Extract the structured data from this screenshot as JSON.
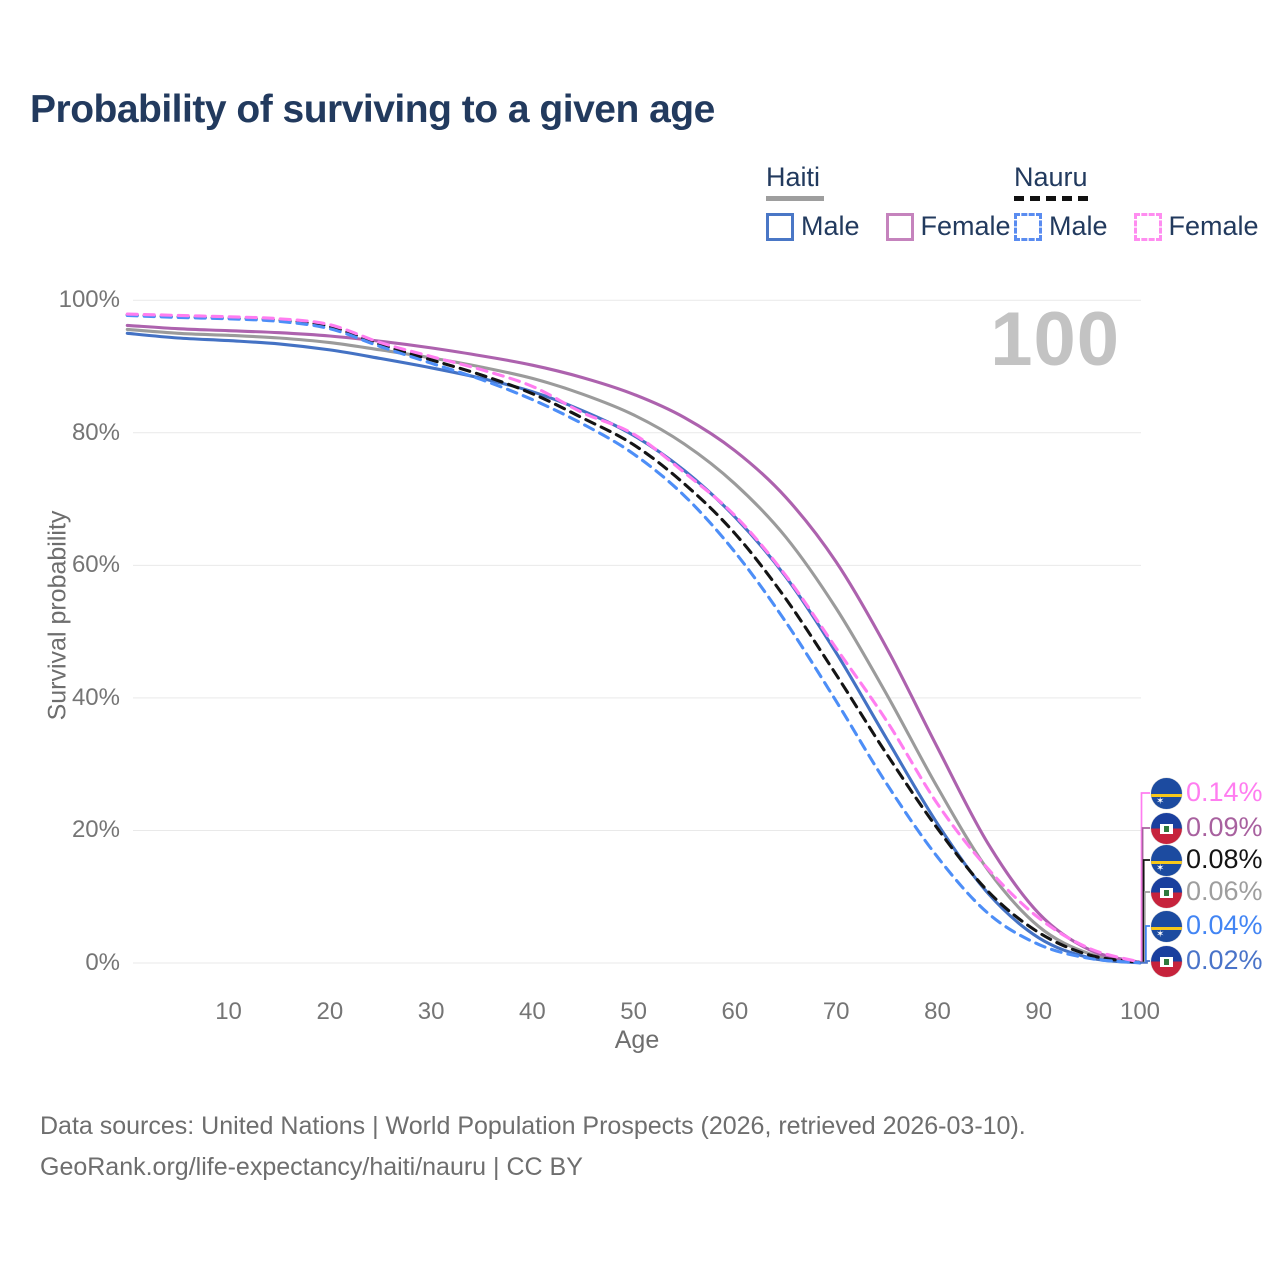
{
  "title": "Probability of surviving to a given age",
  "watermark_age": "100",
  "legend": {
    "groups": [
      {
        "label": "Haiti",
        "line_style": "solid",
        "underline_color": "#9e9e9e",
        "items": [
          {
            "label": "Male",
            "color": "#4a77c6"
          },
          {
            "label": "Female",
            "color": "#c583bd"
          }
        ]
      },
      {
        "label": "Nauru",
        "line_style": "dashed",
        "underline_color": "#111111",
        "items": [
          {
            "label": "Male",
            "color": "#5a8cf0"
          },
          {
            "label": "Female",
            "color": "#ff8df0"
          }
        ]
      }
    ]
  },
  "chart_data": {
    "type": "line",
    "title": "Probability of surviving to a given age",
    "xlabel": "Age",
    "ylabel": "Survival probability",
    "xlim": [
      0,
      100
    ],
    "ylim": [
      0,
      100
    ],
    "grid": "horizontal",
    "x_ticks": [
      "10",
      "20",
      "30",
      "40",
      "50",
      "60",
      "70",
      "80",
      "90",
      "100"
    ],
    "x_tick_values": [
      10,
      20,
      30,
      40,
      50,
      60,
      70,
      80,
      90,
      100
    ],
    "y_ticks": [
      "0%",
      "20%",
      "40%",
      "60%",
      "80%",
      "100%"
    ],
    "y_tick_values": [
      0,
      20,
      40,
      60,
      80,
      100
    ],
    "x": [
      0,
      5,
      10,
      15,
      20,
      25,
      30,
      35,
      40,
      45,
      50,
      55,
      60,
      65,
      70,
      75,
      80,
      85,
      90,
      95,
      100
    ],
    "series": [
      {
        "name": "Haiti",
        "country": "Haiti",
        "sex": "both",
        "color": "#9b9b9b",
        "dashed": false,
        "values": [
          95.6,
          95.0,
          94.7,
          94.3,
          93.6,
          92.5,
          91.3,
          89.9,
          88.2,
          85.8,
          82.7,
          78.3,
          72.3,
          64.3,
          53.5,
          40.5,
          26.5,
          14.0,
          5.5,
          1.4,
          0.06
        ]
      },
      {
        "name": "Haiti Female",
        "country": "Haiti",
        "sex": "female",
        "color": "#ad62ae",
        "dashed": false,
        "values": [
          96.2,
          95.7,
          95.4,
          95.1,
          94.6,
          93.8,
          92.8,
          91.6,
          90.2,
          88.3,
          85.8,
          82.3,
          77.3,
          70.3,
          60.5,
          47.5,
          32.5,
          18.0,
          7.5,
          2.0,
          0.09
        ]
      },
      {
        "name": "Haiti Male",
        "country": "Haiti",
        "sex": "male",
        "color": "#4472c4",
        "dashed": false,
        "values": [
          95.0,
          94.3,
          93.9,
          93.4,
          92.5,
          91.2,
          89.8,
          88.2,
          86.2,
          83.3,
          79.6,
          74.3,
          67.3,
          58.3,
          46.8,
          33.8,
          21.0,
          10.5,
          3.8,
          0.8,
          0.02
        ]
      },
      {
        "name": "Nauru",
        "country": "Nauru",
        "sex": "both",
        "color": "#141414",
        "dashed": true,
        "values": [
          97.8,
          97.5,
          97.3,
          97.0,
          96.0,
          93.3,
          91.0,
          88.7,
          85.9,
          82.2,
          78.2,
          72.3,
          64.8,
          55.0,
          43.5,
          31.5,
          20.3,
          10.8,
          4.6,
          1.2,
          0.08
        ]
      },
      {
        "name": "Nauru Male",
        "country": "Nauru",
        "sex": "male",
        "color": "#4d8ef7",
        "dashed": true,
        "values": [
          97.7,
          97.4,
          97.2,
          96.8,
          95.7,
          93.0,
          90.5,
          88.0,
          85.0,
          81.3,
          76.8,
          70.5,
          62.0,
          51.5,
          39.5,
          27.0,
          16.0,
          7.5,
          2.8,
          0.7,
          0.04
        ]
      },
      {
        "name": "Nauru Female",
        "country": "Nauru",
        "sex": "female",
        "color": "#ff7df0",
        "dashed": true,
        "values": [
          97.9,
          97.7,
          97.5,
          97.2,
          96.3,
          93.6,
          91.5,
          89.5,
          87.0,
          83.0,
          79.8,
          74.0,
          67.5,
          58.5,
          47.5,
          36.5,
          24.0,
          14.2,
          6.8,
          2.2,
          0.14
        ]
      }
    ],
    "end_labels": [
      {
        "text": "0.14%",
        "color": "#ff7df0",
        "flag": "nauru",
        "series": "Nauru Female"
      },
      {
        "text": "0.09%",
        "color": "#a8619f",
        "flag": "haiti",
        "series": "Haiti Female"
      },
      {
        "text": "0.08%",
        "color": "#141414",
        "flag": "nauru",
        "series": "Nauru"
      },
      {
        "text": "0.06%",
        "color": "#9e9e9e",
        "flag": "haiti",
        "series": "Haiti"
      },
      {
        "text": "0.04%",
        "color": "#4285f4",
        "flag": "nauru",
        "series": "Nauru Male"
      },
      {
        "text": "0.02%",
        "color": "#4a74c9",
        "flag": "haiti",
        "series": "Haiti Male"
      }
    ]
  },
  "footer": {
    "line1": "Data sources: United Nations | World Population Prospects (2026, retrieved 2026-03-10).",
    "line2": "GeoRank.org/life-expectancy/haiti/nauru | CC BY"
  }
}
